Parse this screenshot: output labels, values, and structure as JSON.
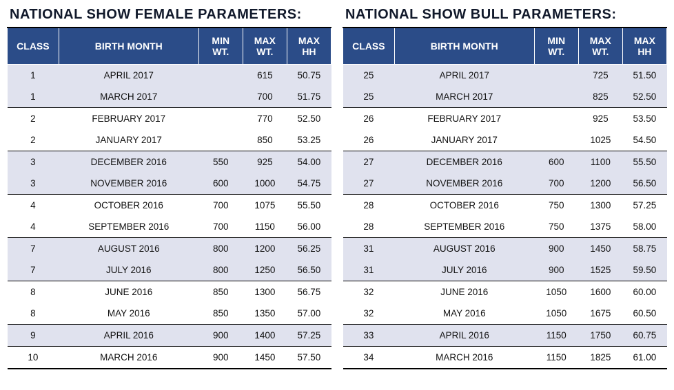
{
  "tables": [
    {
      "title": "NATIONAL SHOW FEMALE PARAMETERS:",
      "headers": {
        "class": "CLASS",
        "month": "BIRTH MONTH",
        "minwt1": "MIN",
        "minwt2": "WT.",
        "maxwt1": "MAX",
        "maxwt2": "WT.",
        "maxhh1": "MAX",
        "maxhh2": "HH"
      },
      "rows": [
        {
          "class": "1",
          "month": "APRIL 2017",
          "min": "",
          "max": "615",
          "hh": "50.75",
          "shade": true,
          "divider": false
        },
        {
          "class": "1",
          "month": "MARCH 2017",
          "min": "",
          "max": "700",
          "hh": "51.75",
          "shade": true,
          "divider": true
        },
        {
          "class": "2",
          "month": "FEBRUARY 2017",
          "min": "",
          "max": "770",
          "hh": "52.50",
          "shade": false,
          "divider": false
        },
        {
          "class": "2",
          "month": "JANUARY 2017",
          "min": "",
          "max": "850",
          "hh": "53.25",
          "shade": false,
          "divider": true
        },
        {
          "class": "3",
          "month": "DECEMBER 2016",
          "min": "550",
          "max": "925",
          "hh": "54.00",
          "shade": true,
          "divider": false
        },
        {
          "class": "3",
          "month": "NOVEMBER 2016",
          "min": "600",
          "max": "1000",
          "hh": "54.75",
          "shade": true,
          "divider": true
        },
        {
          "class": "4",
          "month": "OCTOBER 2016",
          "min": "700",
          "max": "1075",
          "hh": "55.50",
          "shade": false,
          "divider": false
        },
        {
          "class": "4",
          "month": "SEPTEMBER 2016",
          "min": "700",
          "max": "1150",
          "hh": "56.00",
          "shade": false,
          "divider": true
        },
        {
          "class": "7",
          "month": "AUGUST 2016",
          "min": "800",
          "max": "1200",
          "hh": "56.25",
          "shade": true,
          "divider": false
        },
        {
          "class": "7",
          "month": "JULY 2016",
          "min": "800",
          "max": "1250",
          "hh": "56.50",
          "shade": true,
          "divider": true
        },
        {
          "class": "8",
          "month": "JUNE 2016",
          "min": "850",
          "max": "1300",
          "hh": "56.75",
          "shade": false,
          "divider": false
        },
        {
          "class": "8",
          "month": "MAY 2016",
          "min": "850",
          "max": "1350",
          "hh": "57.00",
          "shade": false,
          "divider": true
        },
        {
          "class": "9",
          "month": "APRIL 2016",
          "min": "900",
          "max": "1400",
          "hh": "57.25",
          "shade": true,
          "divider": true
        },
        {
          "class": "10",
          "month": "MARCH 2016",
          "min": "900",
          "max": "1450",
          "hh": "57.50",
          "shade": false,
          "divider": false
        }
      ]
    },
    {
      "title": "NATIONAL SHOW BULL PARAMETERS:",
      "headers": {
        "class": "CLASS",
        "month": "BIRTH MONTH",
        "minwt1": "MIN",
        "minwt2": "WT.",
        "maxwt1": "MAX",
        "maxwt2": "WT.",
        "maxhh1": "MAX",
        "maxhh2": "HH"
      },
      "rows": [
        {
          "class": "25",
          "month": "APRIL 2017",
          "min": "",
          "max": "725",
          "hh": "51.50",
          "shade": true,
          "divider": false
        },
        {
          "class": "25",
          "month": "MARCH 2017",
          "min": "",
          "max": "825",
          "hh": "52.50",
          "shade": true,
          "divider": true
        },
        {
          "class": "26",
          "month": "FEBRUARY 2017",
          "min": "",
          "max": "925",
          "hh": "53.50",
          "shade": false,
          "divider": false
        },
        {
          "class": "26",
          "month": "JANUARY 2017",
          "min": "",
          "max": "1025",
          "hh": "54.50",
          "shade": false,
          "divider": true
        },
        {
          "class": "27",
          "month": "DECEMBER 2016",
          "min": "600",
          "max": "1100",
          "hh": "55.50",
          "shade": true,
          "divider": false
        },
        {
          "class": "27",
          "month": "NOVEMBER 2016",
          "min": "700",
          "max": "1200",
          "hh": "56.50",
          "shade": true,
          "divider": true
        },
        {
          "class": "28",
          "month": "OCTOBER 2016",
          "min": "750",
          "max": "1300",
          "hh": "57.25",
          "shade": false,
          "divider": false
        },
        {
          "class": "28",
          "month": "SEPTEMBER 2016",
          "min": "750",
          "max": "1375",
          "hh": "58.00",
          "shade": false,
          "divider": true
        },
        {
          "class": "31",
          "month": "AUGUST 2016",
          "min": "900",
          "max": "1450",
          "hh": "58.75",
          "shade": true,
          "divider": false
        },
        {
          "class": "31",
          "month": "JULY 2016",
          "min": "900",
          "max": "1525",
          "hh": "59.50",
          "shade": true,
          "divider": true
        },
        {
          "class": "32",
          "month": "JUNE 2016",
          "min": "1050",
          "max": "1600",
          "hh": "60.00",
          "shade": false,
          "divider": false
        },
        {
          "class": "32",
          "month": "MAY 2016",
          "min": "1050",
          "max": "1675",
          "hh": "60.50",
          "shade": false,
          "divider": true
        },
        {
          "class": "33",
          "month": "APRIL 2016",
          "min": "1150",
          "max": "1750",
          "hh": "60.75",
          "shade": true,
          "divider": true
        },
        {
          "class": "34",
          "month": "MARCH 2016",
          "min": "1150",
          "max": "1825",
          "hh": "61.00",
          "shade": false,
          "divider": false
        }
      ]
    }
  ]
}
